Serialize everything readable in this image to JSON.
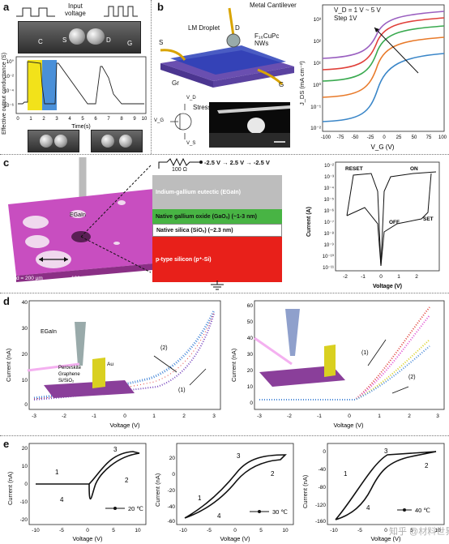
{
  "labels": {
    "a": "a",
    "b": "b",
    "c": "c",
    "d": "d",
    "e": "e"
  },
  "panel_a": {
    "input_label": "Input\nvoltage",
    "electrodes": [
      "C",
      "S",
      "D",
      "G"
    ],
    "ylabel": "Effective output conductance (S)",
    "xlabel": "Time(s)",
    "yticks": [
      "10°",
      "10⁻²",
      "10⁻⁴",
      "10⁻⁶"
    ],
    "xticks": [
      "0",
      "1",
      "2",
      "3",
      "4",
      "5",
      "6",
      "7",
      "8",
      "9",
      "10"
    ],
    "colors": {
      "yellow": "#f2e21a",
      "blue": "#4a90d9"
    }
  },
  "panel_b": {
    "labels": {
      "cantilever": "Metal Cantilever",
      "droplet": "LM Droplet",
      "d": "D",
      "s": "S",
      "nws": "F₁₆CuPc\nNWs",
      "gr": "Gr",
      "g": "G",
      "stress": "Stress",
      "vd": "V_D",
      "vg": "V_G",
      "vs": "V_S"
    },
    "chart": {
      "annotation": "V_D = 1 V ~ 5 V\nStep 1V",
      "xlabel": "V_G (V)",
      "ylabel": "J_DS (mA cm⁻²)",
      "xticks": [
        "-100",
        "-75",
        "-50",
        "-25",
        "0",
        "25",
        "50",
        "75",
        "100"
      ],
      "yticks": [
        "10³",
        "10²",
        "10¹",
        "10⁰",
        "10⁻¹",
        "10⁻²"
      ]
    }
  },
  "panel_c": {
    "resistor": "100 Ω",
    "sweep": "-2.5 V → 2.5 V → -2.5 V",
    "egain": "EGaIn",
    "sizes": [
      "d = 200 µm",
      "100 µm",
      "50 µm"
    ],
    "layers": [
      {
        "label": "Indium-gallium eutectic (EGaIn)",
        "thick": ""
      },
      {
        "label": "Native gallium oxide (GaOₓ)",
        "thick": "(~1-3 nm)"
      },
      {
        "label": "Native silica (SiOₓ)",
        "thick": "(~2.3 nm)"
      },
      {
        "label": "p-type silicon (p⁺-Si)",
        "thick": ""
      }
    ],
    "chart": {
      "xlabel": "Voltage (V)",
      "ylabel": "Current (A)",
      "xticks": [
        "-2",
        "-1",
        "0",
        "1",
        "2"
      ],
      "yticks": [
        "10⁻²",
        "10⁻³",
        "10⁻⁴",
        "10⁻⁵",
        "10⁻⁶",
        "10⁻⁷",
        "10⁻⁸",
        "10⁻⁹",
        "10⁻¹⁰",
        "10⁻¹¹"
      ],
      "annotations": [
        "RESET",
        "ON",
        "OFF",
        "SET"
      ]
    }
  },
  "panel_d": {
    "left": {
      "ylabel": "Current (nA)",
      "xlabel": "Voltage (V)",
      "yticks": [
        "40",
        "30",
        "20",
        "10",
        "0"
      ],
      "xticks": [
        "-3",
        "-2",
        "-1",
        "0",
        "1",
        "2",
        "3"
      ],
      "arrows": [
        "(2)",
        "(1)"
      ],
      "inset": [
        "EGaIn",
        "Perovskite",
        "Graphene",
        "Si/SiO₂",
        "Au"
      ]
    },
    "right": {
      "ylabel": "Current (nA)",
      "xlabel": "Voltage (V)",
      "yticks": [
        "60",
        "50",
        "40",
        "30",
        "20",
        "10",
        "0"
      ],
      "xticks": [
        "-3",
        "-2",
        "-1",
        "0",
        "1",
        "2",
        "3"
      ],
      "arrows": [
        "(1)",
        "(2)"
      ]
    }
  },
  "panel_e": [
    {
      "ylabel": "Current (nA)",
      "xlabel": "Voltage (V)",
      "yticks": [
        "20",
        "10",
        "0",
        "-10",
        "-20"
      ],
      "xticks": [
        "-10",
        "-5",
        "0",
        "5",
        "10"
      ],
      "temp": "20 ℃",
      "nums": [
        "1",
        "2",
        "3",
        "4"
      ]
    },
    {
      "ylabel": "Current (nA)",
      "xlabel": "Voltage (V)",
      "yticks": [
        "20",
        "0",
        "-20",
        "-40",
        "-60"
      ],
      "xticks": [
        "-10",
        "-5",
        "0",
        "5",
        "10"
      ],
      "temp": "30 ℃",
      "nums": [
        "1",
        "2",
        "3",
        "4"
      ]
    },
    {
      "ylabel": "Current (nA)",
      "xlabel": "Voltage (V)",
      "yticks": [
        "0",
        "-40",
        "-80",
        "-120",
        "-160"
      ],
      "xticks": [
        "-10",
        "-5",
        "0",
        "5",
        "10"
      ],
      "temp": "40 ℃",
      "nums": [
        "1",
        "2",
        "3",
        "4"
      ]
    }
  ],
  "watermark": "知乎 @材料世界"
}
